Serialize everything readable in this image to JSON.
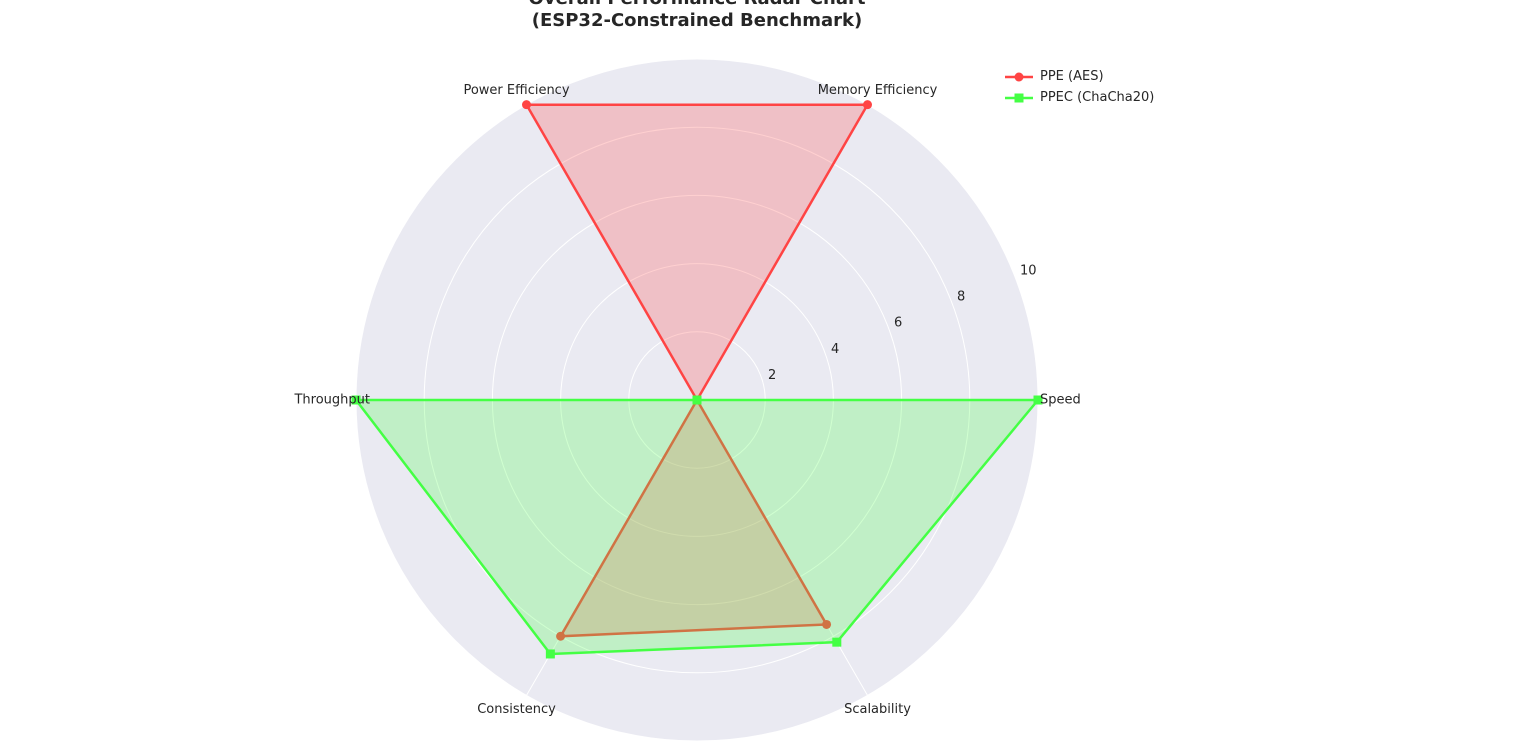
{
  "chart_data": {
    "type": "radar",
    "title": "Overall Performance Radar Chart",
    "subtitle": "(ESP32-Constrained Benchmark)",
    "categories": [
      "Speed",
      "Memory Efficiency",
      "Power Efficiency",
      "Throughput",
      "Consistency",
      "Scalability"
    ],
    "r_ticks": [
      2,
      4,
      6,
      8,
      10
    ],
    "rlim": [
      0,
      10
    ],
    "grid": true,
    "legend_position": "top-right",
    "series": [
      {
        "name": "PPE (AES)",
        "values": [
          0,
          10,
          10,
          0,
          8,
          7.6
        ],
        "color": "#ff4444",
        "marker": "circle"
      },
      {
        "name": "PPEC (ChaCha20)",
        "values": [
          10,
          0,
          0,
          10,
          8.6,
          8.2
        ],
        "color": "#44ff44",
        "marker": "square"
      }
    ]
  }
}
